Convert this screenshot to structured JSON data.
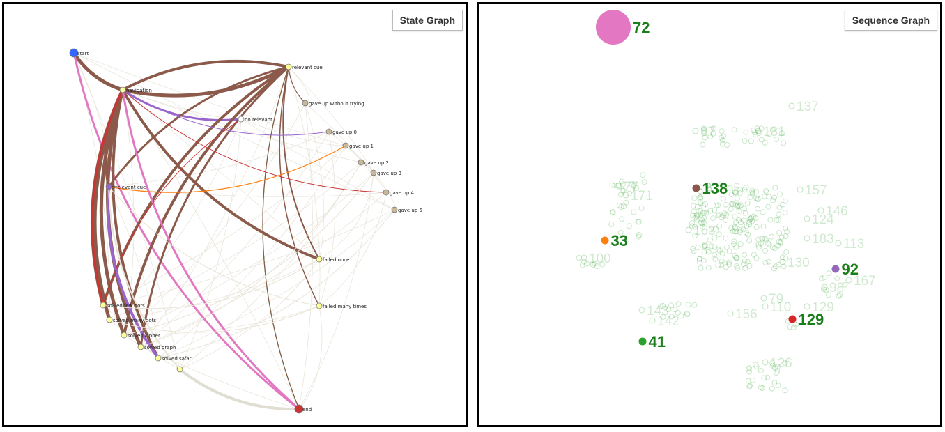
{
  "left": {
    "button": "State Graph",
    "nodes": [
      {
        "id": "start",
        "label": "start",
        "color": "#3366ff"
      },
      {
        "id": "navigation",
        "label": "navigation",
        "color": "#ffff99"
      },
      {
        "id": "relevant_cue",
        "label": "relevant cue",
        "color": "#ffff99"
      },
      {
        "id": "irrelevant_cue",
        "label": "irrelevant cue",
        "color": "#9966cc"
      },
      {
        "id": "no_relevant",
        "label": "no relevant",
        "color": "#ffffff"
      },
      {
        "id": "gave_up_without_trying",
        "label": "gave up without trying",
        "color": "#c8b89a"
      },
      {
        "id": "gave_up_0",
        "label": "gave up 0",
        "color": "#c8b89a"
      },
      {
        "id": "gave_up_1",
        "label": "gave up 1",
        "color": "#c8b89a"
      },
      {
        "id": "gave_up_2",
        "label": "gave up 2",
        "color": "#c8b89a"
      },
      {
        "id": "gave_up_3",
        "label": "gave up 3",
        "color": "#c8b89a"
      },
      {
        "id": "gave_up_4",
        "label": "gave up 4",
        "color": "#c8b89a"
      },
      {
        "id": "gave_up_5",
        "label": "gave up 5",
        "color": "#c8b89a"
      },
      {
        "id": "failed_once",
        "label": "failed once",
        "color": "#ffff99"
      },
      {
        "id": "failed_many_times",
        "label": "failed many times",
        "color": "#ffff99"
      },
      {
        "id": "solved_few_dots",
        "label": "solved few dots",
        "color": "#ffff99"
      },
      {
        "id": "solved_many_dots",
        "label": "solved many dots",
        "color": "#ffff99"
      },
      {
        "id": "solved_cipher",
        "label": "solved cipher",
        "color": "#ffff99"
      },
      {
        "id": "solved_graph",
        "label": "solved graph",
        "color": "#ffff99"
      },
      {
        "id": "solved_safari",
        "label": "solved safari",
        "color": "#ffff99"
      },
      {
        "id": "solved_other",
        "label": "",
        "color": "#ffff99"
      },
      {
        "id": "end",
        "label": "end",
        "color": "#cc3333"
      }
    ],
    "edges": [
      {
        "from": "start",
        "to": "navigation",
        "color": "#8b5a4a",
        "w": 5
      },
      {
        "from": "start",
        "to": "end",
        "color": "#e377c2",
        "w": 3
      },
      {
        "from": "navigation",
        "to": "relevant_cue",
        "color": "#8b5a4a",
        "w": 5
      },
      {
        "from": "relevant_cue",
        "to": "navigation",
        "color": "#8b5a4a",
        "w": 4
      },
      {
        "from": "navigation",
        "to": "irrelevant_cue",
        "color": "#8b5a4a",
        "w": 4
      },
      {
        "from": "navigation",
        "to": "solved_few_dots",
        "color": "#8b5a4a",
        "w": 5
      },
      {
        "from": "navigation",
        "to": "solved_many_dots",
        "color": "#8b5a4a",
        "w": 5
      },
      {
        "from": "navigation",
        "to": "solved_cipher",
        "color": "#8b5a4a",
        "w": 5
      },
      {
        "from": "navigation",
        "to": "solved_graph",
        "color": "#8b5a4a",
        "w": 5
      },
      {
        "from": "navigation",
        "to": "solved_safari",
        "color": "#8b5a4a",
        "w": 4
      },
      {
        "from": "navigation",
        "to": "failed_once",
        "color": "#8b5a4a",
        "w": 4
      },
      {
        "from": "navigation",
        "to": "no_relevant",
        "color": "#9966cc",
        "w": 3
      },
      {
        "from": "navigation",
        "to": "solved_few_dots",
        "color": "#cc3333",
        "w": 3
      },
      {
        "from": "relevant_cue",
        "to": "solved_few_dots",
        "color": "#8b5a4a",
        "w": 4
      },
      {
        "from": "relevant_cue",
        "to": "solved_cipher",
        "color": "#8b5a4a",
        "w": 4
      },
      {
        "from": "relevant_cue",
        "to": "solved_graph",
        "color": "#8b5a4a",
        "w": 3
      },
      {
        "from": "relevant_cue",
        "to": "irrelevant_cue",
        "color": "#8b5a4a",
        "w": 3
      },
      {
        "from": "relevant_cue",
        "to": "failed_once",
        "color": "#8b5a4a",
        "w": 2
      },
      {
        "from": "relevant_cue",
        "to": "failed_many_times",
        "color": "#8b5a4a",
        "w": 1.5
      },
      {
        "from": "relevant_cue",
        "to": "end",
        "color": "#2ca02c",
        "w": 1.2
      },
      {
        "from": "relevant_cue",
        "to": "end",
        "color": "#8b5a4a",
        "w": 1.2
      },
      {
        "from": "relevant_cue",
        "to": "gave_up_without_trying",
        "color": "#8b5a4a",
        "w": 1.2
      },
      {
        "from": "irrelevant_cue",
        "to": "gave_up_1",
        "color": "#ff7f0e",
        "w": 1.2
      },
      {
        "from": "irrelevant_cue",
        "to": "solved_safari",
        "color": "#9966cc",
        "w": 4
      },
      {
        "from": "navigation",
        "to": "gave_up_0",
        "color": "#9966cc",
        "w": 1
      },
      {
        "from": "navigation",
        "to": "gave_up_4",
        "color": "#cc3333",
        "w": 1
      },
      {
        "from": "navigation",
        "to": "end",
        "color": "#e377c2",
        "w": 3
      },
      {
        "from": "solved_other",
        "to": "end",
        "color": "#e0ddd2",
        "w": 4
      },
      {
        "from": "no_relevant",
        "to": "solved_few_dots",
        "color": "#cc3333",
        "w": 1
      },
      {
        "from": "solved_few_dots",
        "to": "failed_once",
        "color": "#e8e4d8",
        "w": 1
      },
      {
        "from": "solved_many_dots",
        "to": "failed_many_times",
        "color": "#e8e4d8",
        "w": 1
      },
      {
        "from": "solved_cipher",
        "to": "gave_up_3",
        "color": "#e8e4d8",
        "w": 1
      },
      {
        "from": "irrelevant_cue",
        "to": "failed_many_times",
        "color": "#e8e4d8",
        "w": 1
      },
      {
        "from": "solved_graph",
        "to": "gave_up_2",
        "color": "#e8e4d8",
        "w": 1
      },
      {
        "from": "solved_safari",
        "to": "gave_up_5",
        "color": "#e8e4d8",
        "w": 1
      },
      {
        "from": "irrelevant_cue",
        "to": "solved_other",
        "color": "#e8e4d8",
        "w": 2
      }
    ]
  },
  "right": {
    "button": "Sequence Graph",
    "highlighted": [
      {
        "label": "72",
        "color": "#e377c2",
        "size": "large"
      },
      {
        "label": "138",
        "color": "#8c564b",
        "size": "small"
      },
      {
        "label": "33",
        "color": "#ff7f0e",
        "size": "small"
      },
      {
        "label": "92",
        "color": "#9467bd",
        "size": "small"
      },
      {
        "label": "129",
        "color": "#d62728",
        "size": "small"
      },
      {
        "label": "41",
        "color": "#2ca02c",
        "size": "small"
      }
    ],
    "faded_labels": [
      "137",
      "87",
      "181",
      "77",
      "171",
      "157",
      "146",
      "124",
      "183",
      "113",
      "98",
      "130",
      "143",
      "142",
      "156",
      "110",
      "79",
      "129",
      "126",
      "163",
      "100",
      "167"
    ]
  }
}
